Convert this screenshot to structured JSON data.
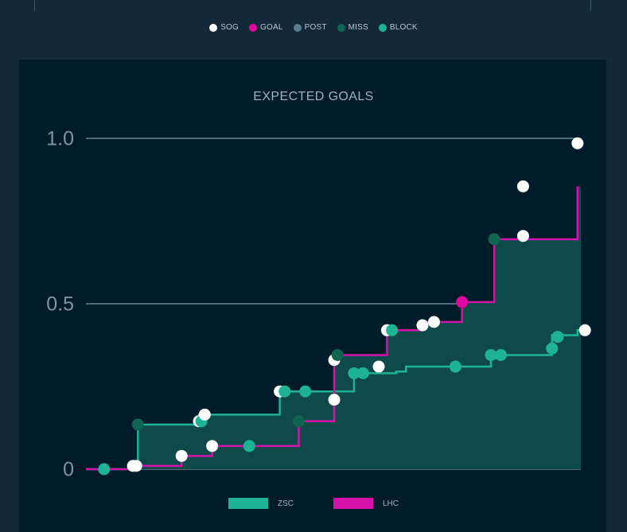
{
  "shot_legend": [
    {
      "label": "SOG",
      "color": "#ffffff"
    },
    {
      "label": "GOAL",
      "color": "#e0079f"
    },
    {
      "label": "POST",
      "color": "#5b7b8e"
    },
    {
      "label": "MISS",
      "color": "#106552"
    },
    {
      "label": "BLOCK",
      "color": "#1eb394"
    }
  ],
  "colors": {
    "zsc": "#1eb394",
    "lhc": "#d613a9",
    "area": "#0f4a4a",
    "grid": "#4d6b7b",
    "axis_text": "#7d95a4",
    "panel": "#001c2a",
    "background": "#112939"
  },
  "chart_data": {
    "type": "line",
    "title": "EXPECTED GOALS",
    "xlabel": "",
    "ylabel": "",
    "y_ticks": [
      "0",
      "0.5",
      "1.0"
    ],
    "ylim": [
      0,
      1.0
    ],
    "xlim": [
      0,
      60
    ],
    "grid": true,
    "legend_position": "bottom",
    "step": true,
    "series": [
      {
        "name": "ZSC",
        "color": "#1eb394",
        "x": [
          0,
          6.3,
          13.7,
          23.5,
          32.5,
          37.6,
          38.8,
          44.0,
          49.1,
          50.3,
          56.5,
          59.6
        ],
        "y": [
          0,
          0.135,
          0.165,
          0.235,
          0.29,
          0.295,
          0.31,
          0.31,
          0.335,
          0.345,
          0.405,
          0.42
        ],
        "events": [
          {
            "x": 2.2,
            "y": 0,
            "type": "BLOCK"
          },
          {
            "x": 6.3,
            "y": 0.135,
            "type": "MISS"
          },
          {
            "x": 13.7,
            "y": 0.145,
            "type": "SOG"
          },
          {
            "x": 14.0,
            "y": 0.145,
            "type": "BLOCK"
          },
          {
            "x": 14.4,
            "y": 0.165,
            "type": "SOG"
          },
          {
            "x": 23.5,
            "y": 0.235,
            "type": "SOG"
          },
          {
            "x": 24.1,
            "y": 0.235,
            "type": "BLOCK"
          },
          {
            "x": 26.6,
            "y": 0.235,
            "type": "BLOCK"
          },
          {
            "x": 32.5,
            "y": 0.29,
            "type": "BLOCK"
          },
          {
            "x": 33.6,
            "y": 0.29,
            "type": "BLOCK"
          },
          {
            "x": 35.5,
            "y": 0.31,
            "type": "SOG"
          },
          {
            "x": 44.8,
            "y": 0.31,
            "type": "BLOCK"
          },
          {
            "x": 49.1,
            "y": 0.345,
            "type": "BLOCK"
          },
          {
            "x": 50.3,
            "y": 0.345,
            "type": "BLOCK"
          },
          {
            "x": 56.5,
            "y": 0.365,
            "type": "BLOCK"
          },
          {
            "x": 57.2,
            "y": 0.4,
            "type": "BLOCK"
          },
          {
            "x": 60.5,
            "y": 0.42,
            "type": "SOG"
          }
        ]
      },
      {
        "name": "LHC",
        "color": "#d613a9",
        "x": [
          0,
          5.7,
          11.6,
          15.3,
          25.8,
          30.1,
          36.5,
          40.8,
          45.6,
          49.5,
          59.6
        ],
        "y": [
          0,
          0.01,
          0.04,
          0.07,
          0.145,
          0.345,
          0.42,
          0.445,
          0.505,
          0.695,
          0.855
        ],
        "events": [
          {
            "x": 5.7,
            "y": 0.01,
            "type": "SOG"
          },
          {
            "x": 6.1,
            "y": 0.01,
            "type": "SOG"
          },
          {
            "x": 11.6,
            "y": 0.04,
            "type": "SOG"
          },
          {
            "x": 15.3,
            "y": 0.07,
            "type": "SOG"
          },
          {
            "x": 19.8,
            "y": 0.07,
            "type": "BLOCK"
          },
          {
            "x": 25.8,
            "y": 0.145,
            "type": "MISS"
          },
          {
            "x": 30.1,
            "y": 0.21,
            "type": "SOG"
          },
          {
            "x": 30.1,
            "y": 0.33,
            "type": "SOG"
          },
          {
            "x": 30.5,
            "y": 0.345,
            "type": "MISS"
          },
          {
            "x": 36.5,
            "y": 0.42,
            "type": "SOG"
          },
          {
            "x": 37.1,
            "y": 0.42,
            "type": "BLOCK"
          },
          {
            "x": 40.8,
            "y": 0.435,
            "type": "SOG"
          },
          {
            "x": 42.2,
            "y": 0.445,
            "type": "SOG"
          },
          {
            "x": 45.6,
            "y": 0.505,
            "type": "GOAL"
          },
          {
            "x": 49.5,
            "y": 0.695,
            "type": "MISS"
          },
          {
            "x": 53.0,
            "y": 0.705,
            "type": "SOG"
          },
          {
            "x": 53.0,
            "y": 0.855,
            "type": "SOG"
          },
          {
            "x": 59.6,
            "y": 0.985,
            "type": "SOG"
          }
        ]
      }
    ]
  }
}
